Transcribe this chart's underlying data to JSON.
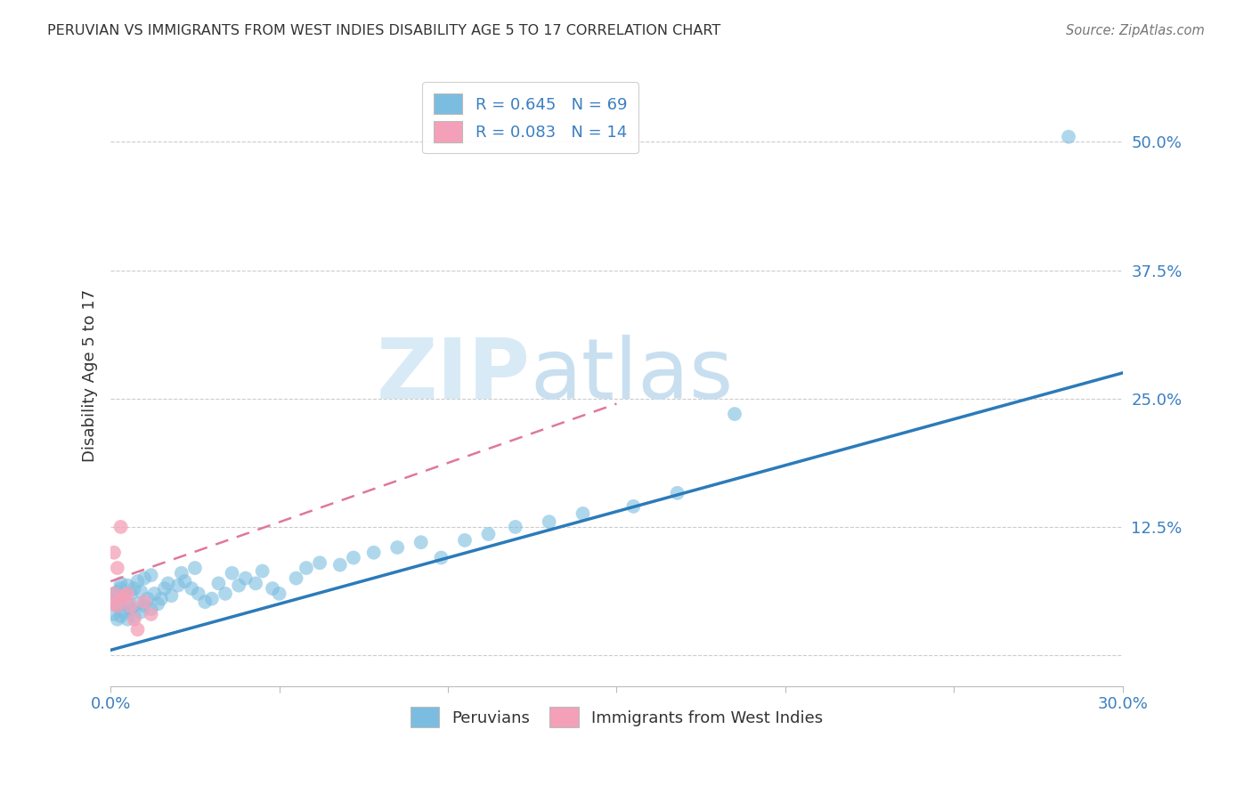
{
  "title": "PERUVIAN VS IMMIGRANTS FROM WEST INDIES DISABILITY AGE 5 TO 17 CORRELATION CHART",
  "source": "Source: ZipAtlas.com",
  "ylabel": "Disability Age 5 to 17",
  "xlim": [
    0.0,
    0.3
  ],
  "ylim": [
    -0.03,
    0.575
  ],
  "xticks": [
    0.0,
    0.05,
    0.1,
    0.15,
    0.2,
    0.25,
    0.3
  ],
  "xtick_labels": [
    "0.0%",
    "",
    "",
    "",
    "",
    "",
    "30.0%"
  ],
  "yticks": [
    0.0,
    0.125,
    0.25,
    0.375,
    0.5
  ],
  "ytick_labels": [
    "",
    "12.5%",
    "25.0%",
    "37.5%",
    "50.0%"
  ],
  "r_peruvian": 0.645,
  "n_peruvian": 69,
  "r_west_indies": 0.083,
  "n_west_indies": 14,
  "color_peruvian": "#7bbde0",
  "color_west_indies": "#f4a0b8",
  "color_trend_peruvian": "#2b7bba",
  "color_trend_west_indies": "#e07898",
  "watermark_zip": "ZIP",
  "watermark_atlas": "atlas",
  "watermark_color": "#d8eaf6",
  "legend_label_peruvian": "Peruvians",
  "legend_label_west_indies": "Immigrants from West Indies",
  "peru_x": [
    0.001,
    0.001,
    0.001,
    0.002,
    0.002,
    0.002,
    0.003,
    0.003,
    0.003,
    0.003,
    0.004,
    0.004,
    0.005,
    0.005,
    0.005,
    0.006,
    0.006,
    0.007,
    0.007,
    0.008,
    0.008,
    0.009,
    0.009,
    0.01,
    0.01,
    0.011,
    0.012,
    0.012,
    0.013,
    0.014,
    0.015,
    0.016,
    0.017,
    0.018,
    0.02,
    0.021,
    0.022,
    0.024,
    0.025,
    0.026,
    0.028,
    0.03,
    0.032,
    0.034,
    0.036,
    0.038,
    0.04,
    0.043,
    0.045,
    0.048,
    0.05,
    0.055,
    0.058,
    0.062,
    0.068,
    0.072,
    0.078,
    0.085,
    0.092,
    0.098,
    0.105,
    0.112,
    0.12,
    0.13,
    0.14,
    0.155,
    0.168,
    0.185,
    0.284
  ],
  "peru_y": [
    0.04,
    0.052,
    0.06,
    0.035,
    0.048,
    0.062,
    0.038,
    0.055,
    0.065,
    0.07,
    0.042,
    0.058,
    0.035,
    0.05,
    0.068,
    0.045,
    0.06,
    0.038,
    0.065,
    0.05,
    0.072,
    0.042,
    0.062,
    0.048,
    0.075,
    0.055,
    0.045,
    0.078,
    0.06,
    0.05,
    0.055,
    0.065,
    0.07,
    0.058,
    0.068,
    0.08,
    0.072,
    0.065,
    0.085,
    0.06,
    0.052,
    0.055,
    0.07,
    0.06,
    0.08,
    0.068,
    0.075,
    0.07,
    0.082,
    0.065,
    0.06,
    0.075,
    0.085,
    0.09,
    0.088,
    0.095,
    0.1,
    0.105,
    0.11,
    0.095,
    0.112,
    0.118,
    0.125,
    0.13,
    0.138,
    0.145,
    0.158,
    0.235,
    0.505
  ],
  "wi_x": [
    0.0005,
    0.001,
    0.001,
    0.002,
    0.002,
    0.003,
    0.003,
    0.004,
    0.005,
    0.006,
    0.007,
    0.008,
    0.01,
    0.012
  ],
  "wi_y": [
    0.05,
    0.06,
    0.1,
    0.048,
    0.085,
    0.055,
    0.125,
    0.058,
    0.06,
    0.048,
    0.035,
    0.025,
    0.052,
    0.04
  ],
  "peru_trend_x0": 0.0,
  "peru_trend_y0": 0.005,
  "peru_trend_x1": 0.3,
  "peru_trend_y1": 0.275,
  "wi_trend_x0": 0.0,
  "wi_trend_y0": 0.072,
  "wi_trend_x1": 0.15,
  "wi_trend_y1": 0.245
}
